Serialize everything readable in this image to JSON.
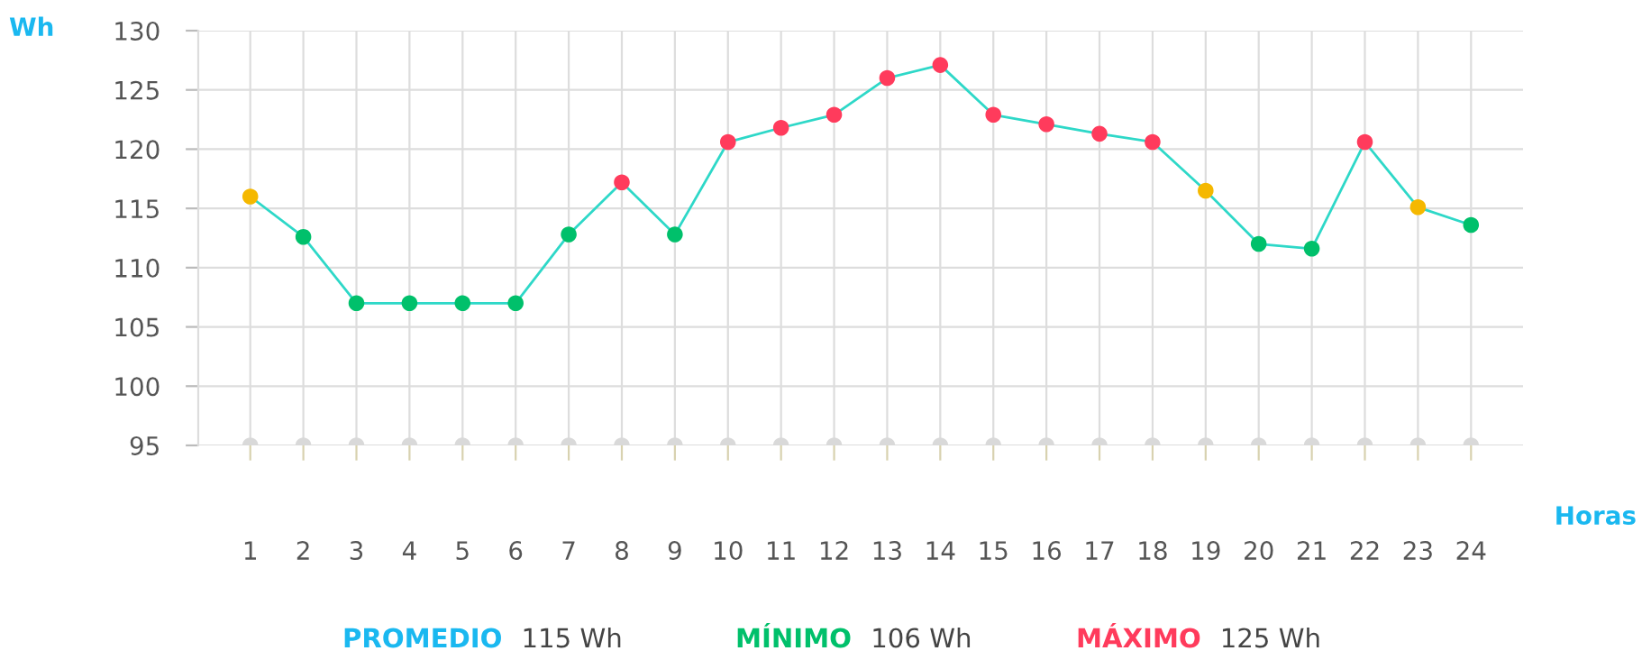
{
  "chart_data": {
    "type": "line",
    "xlabel": "Horas",
    "ylabel": "Wh",
    "categories": [
      "1",
      "2",
      "3",
      "4",
      "5",
      "6",
      "7",
      "8",
      "9",
      "10",
      "11",
      "12",
      "13",
      "14",
      "15",
      "16",
      "17",
      "18",
      "19",
      "20",
      "21",
      "22",
      "23",
      "24"
    ],
    "series": [
      {
        "type": "scatter",
        "color": "#d9d9d9",
        "values": [
          95,
          95,
          95,
          95,
          95,
          95,
          95,
          95,
          95,
          95,
          95,
          95,
          95,
          95,
          95,
          95,
          95,
          95,
          95,
          95,
          95,
          95,
          95,
          95
        ]
      },
      {
        "color": "#2ed8c8",
        "values": [
          116.0,
          112.6,
          107.0,
          107.0,
          107.0,
          107.0,
          112.8,
          117.2,
          112.8,
          120.6,
          121.8,
          122.9,
          126.0,
          127.1,
          122.9,
          122.1,
          121.3,
          120.6,
          116.5,
          112.0,
          111.6,
          120.6,
          115.1,
          113.6
        ],
        "colors": [
          "#f5b800",
          "#00c06b",
          "#00c06b",
          "#00c06b",
          "#00c06b",
          "#00c06b",
          "#00c06b",
          "#ff3b5c",
          "#00c06b",
          "#ff3b5c",
          "#ff3b5c",
          "#ff3b5c",
          "#ff3b5c",
          "#ff3b5c",
          "#ff3b5c",
          "#ff3b5c",
          "#ff3b5c",
          "#ff3b5c",
          "#f5b800",
          "#00c06b",
          "#00c06b",
          "#ff3b5c",
          "#f5b800",
          "#00c06b"
        ]
      }
    ],
    "ylim": [
      95,
      130
    ],
    "yticks": [
      95,
      100,
      105,
      110,
      115,
      120,
      125,
      130
    ],
    "grid": true,
    "marker": "circle",
    "line_style": "solid",
    "annotations": [
      "PROMEDIO 115 Wh",
      "MÍNIMO 106 Wh",
      "MÁXIMO 125 Wh"
    ]
  }
}
